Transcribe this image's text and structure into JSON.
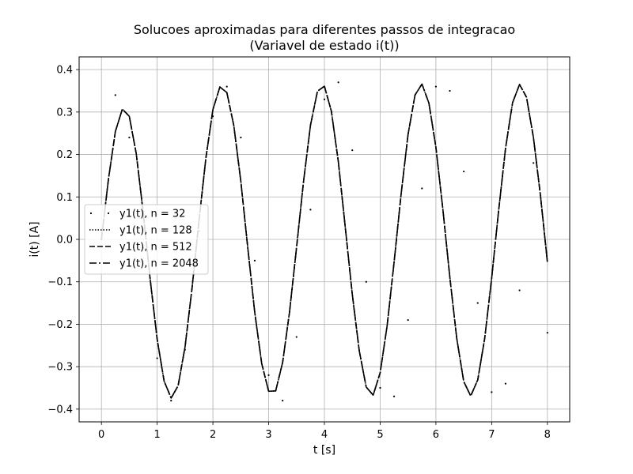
{
  "chart_data": {
    "type": "line",
    "title": "Solucoes aproximadas para diferentes passos de integracao",
    "subtitle": "(Variavel de estado i(t))",
    "xlabel": "t [s]",
    "ylabel": "i(t) [A]",
    "xlim": [
      -0.4,
      8.4
    ],
    "ylim": [
      -0.43,
      0.43
    ],
    "x_ticks": [
      0,
      1,
      2,
      3,
      4,
      5,
      6,
      7,
      8
    ],
    "y_ticks": [
      -0.4,
      -0.3,
      -0.2,
      -0.1,
      0.0,
      0.1,
      0.2,
      0.3,
      0.4
    ],
    "x_tick_labels": [
      "0",
      "1",
      "2",
      "3",
      "4",
      "5",
      "6",
      "7",
      "8"
    ],
    "y_tick_labels": [
      "−0.4",
      "−0.3",
      "−0.2",
      "−0.1",
      "0.0",
      "0.1",
      "0.2",
      "0.3",
      "0.4"
    ],
    "grid": true,
    "legend_position": "center-left",
    "colors": {
      "lines": "#000000",
      "grid": "#b0b0b0",
      "axes": "#000000"
    },
    "series": [
      {
        "name": "y1(t), n = 32",
        "style": "sparse-dotted",
        "x": [
          0.0,
          0.25,
          0.5,
          0.75,
          1.0,
          1.25,
          1.5,
          1.75,
          2.0,
          2.25,
          2.5,
          2.75,
          3.0,
          3.25,
          3.5,
          3.75,
          4.0,
          4.25,
          4.5,
          4.75,
          5.0,
          5.25,
          5.5,
          5.75,
          6.0,
          6.25,
          6.5,
          6.75,
          7.0,
          7.25,
          7.5,
          7.75,
          8.0
        ],
        "y": [
          0.0,
          0.34,
          0.24,
          -0.02,
          -0.28,
          -0.38,
          -0.26,
          0.02,
          0.29,
          0.36,
          0.24,
          -0.05,
          -0.32,
          -0.38,
          -0.23,
          0.07,
          0.33,
          0.37,
          0.21,
          -0.1,
          -0.35,
          -0.37,
          -0.19,
          0.12,
          0.36,
          0.35,
          0.16,
          -0.15,
          -0.36,
          -0.34,
          -0.12,
          0.18,
          -0.22
        ]
      },
      {
        "name": "y1(t), n = 128",
        "style": "dotted",
        "x": [
          0.0,
          0.125,
          0.25,
          0.375,
          0.5,
          0.625,
          0.75,
          0.875,
          1.0,
          1.125,
          1.25,
          1.375,
          1.5,
          1.625,
          1.75,
          1.875,
          2.0,
          2.125,
          2.25,
          2.375,
          2.5,
          2.625,
          2.75,
          2.875,
          3.0,
          3.125,
          3.25,
          3.375,
          3.5,
          3.625,
          3.75,
          3.875,
          4.0,
          4.125,
          4.25,
          4.375,
          4.5,
          4.625,
          4.75,
          4.875,
          5.0,
          5.125,
          5.25,
          5.375,
          5.5,
          5.625,
          5.75,
          5.875,
          6.0,
          6.125,
          6.25,
          6.375,
          6.5,
          6.625,
          6.75,
          6.875,
          7.0,
          7.125,
          7.25,
          7.375,
          7.5,
          7.625,
          7.75,
          7.875,
          8.0
        ],
        "y": [
          0.0,
          0.141,
          0.254,
          0.307,
          0.29,
          0.202,
          0.063,
          -0.094,
          -0.235,
          -0.334,
          -0.374,
          -0.345,
          -0.253,
          -0.115,
          0.044,
          0.193,
          0.306,
          0.359,
          0.346,
          0.268,
          0.138,
          -0.019,
          -0.171,
          -0.292,
          -0.358,
          -0.357,
          -0.29,
          -0.17,
          -0.019,
          0.136,
          0.269,
          0.349,
          0.361,
          0.302,
          0.183,
          0.028,
          -0.129,
          -0.262,
          -0.348,
          -0.367,
          -0.314,
          -0.203,
          -0.053,
          0.106,
          0.247,
          0.34,
          0.366,
          0.321,
          0.217,
          0.071,
          -0.089,
          -0.234,
          -0.335,
          -0.369,
          -0.331,
          -0.233,
          -0.091,
          0.068,
          0.216,
          0.322,
          0.365,
          0.335,
          0.24,
          0.104,
          -0.053
        ]
      },
      {
        "name": "y1(t), n = 512",
        "style": "dashed",
        "x": [
          0.0,
          0.125,
          0.25,
          0.375,
          0.5,
          0.625,
          0.75,
          0.875,
          1.0,
          1.125,
          1.25,
          1.375,
          1.5,
          1.625,
          1.75,
          1.875,
          2.0,
          2.125,
          2.25,
          2.375,
          2.5,
          2.625,
          2.75,
          2.875,
          3.0,
          3.125,
          3.25,
          3.375,
          3.5,
          3.625,
          3.75,
          3.875,
          4.0,
          4.125,
          4.25,
          4.375,
          4.5,
          4.625,
          4.75,
          4.875,
          5.0,
          5.125,
          5.25,
          5.375,
          5.5,
          5.625,
          5.75,
          5.875,
          6.0,
          6.125,
          6.25,
          6.375,
          6.5,
          6.625,
          6.75,
          6.875,
          7.0,
          7.125,
          7.25,
          7.375,
          7.5,
          7.625,
          7.75,
          7.875,
          8.0
        ],
        "y": [
          0.0,
          0.141,
          0.254,
          0.307,
          0.29,
          0.202,
          0.063,
          -0.094,
          -0.235,
          -0.334,
          -0.374,
          -0.345,
          -0.253,
          -0.115,
          0.044,
          0.193,
          0.306,
          0.359,
          0.346,
          0.268,
          0.138,
          -0.019,
          -0.171,
          -0.292,
          -0.358,
          -0.357,
          -0.29,
          -0.17,
          -0.019,
          0.136,
          0.269,
          0.349,
          0.361,
          0.302,
          0.183,
          0.028,
          -0.129,
          -0.262,
          -0.348,
          -0.367,
          -0.314,
          -0.203,
          -0.053,
          0.106,
          0.247,
          0.34,
          0.366,
          0.321,
          0.217,
          0.071,
          -0.089,
          -0.234,
          -0.335,
          -0.369,
          -0.331,
          -0.233,
          -0.091,
          0.068,
          0.216,
          0.322,
          0.365,
          0.335,
          0.24,
          0.104,
          -0.053
        ]
      },
      {
        "name": "y1(t), n = 2048",
        "style": "dashdot",
        "x": [
          0.0,
          0.125,
          0.25,
          0.375,
          0.5,
          0.625,
          0.75,
          0.875,
          1.0,
          1.125,
          1.25,
          1.375,
          1.5,
          1.625,
          1.75,
          1.875,
          2.0,
          2.125,
          2.25,
          2.375,
          2.5,
          2.625,
          2.75,
          2.875,
          3.0,
          3.125,
          3.25,
          3.375,
          3.5,
          3.625,
          3.75,
          3.875,
          4.0,
          4.125,
          4.25,
          4.375,
          4.5,
          4.625,
          4.75,
          4.875,
          5.0,
          5.125,
          5.25,
          5.375,
          5.5,
          5.625,
          5.75,
          5.875,
          6.0,
          6.125,
          6.25,
          6.375,
          6.5,
          6.625,
          6.75,
          6.875,
          7.0,
          7.125,
          7.25,
          7.375,
          7.5,
          7.625,
          7.75,
          7.875,
          8.0
        ],
        "y": [
          0.0,
          0.141,
          0.254,
          0.307,
          0.29,
          0.202,
          0.063,
          -0.094,
          -0.235,
          -0.334,
          -0.374,
          -0.345,
          -0.253,
          -0.115,
          0.044,
          0.193,
          0.306,
          0.359,
          0.346,
          0.268,
          0.138,
          -0.019,
          -0.171,
          -0.292,
          -0.358,
          -0.357,
          -0.29,
          -0.17,
          -0.019,
          0.136,
          0.269,
          0.349,
          0.361,
          0.302,
          0.183,
          0.028,
          -0.129,
          -0.262,
          -0.348,
          -0.367,
          -0.314,
          -0.203,
          -0.053,
          0.106,
          0.247,
          0.34,
          0.366,
          0.321,
          0.217,
          0.071,
          -0.089,
          -0.234,
          -0.335,
          -0.369,
          -0.331,
          -0.233,
          -0.091,
          0.068,
          0.216,
          0.322,
          0.365,
          0.335,
          0.24,
          0.104,
          -0.053
        ]
      }
    ]
  }
}
